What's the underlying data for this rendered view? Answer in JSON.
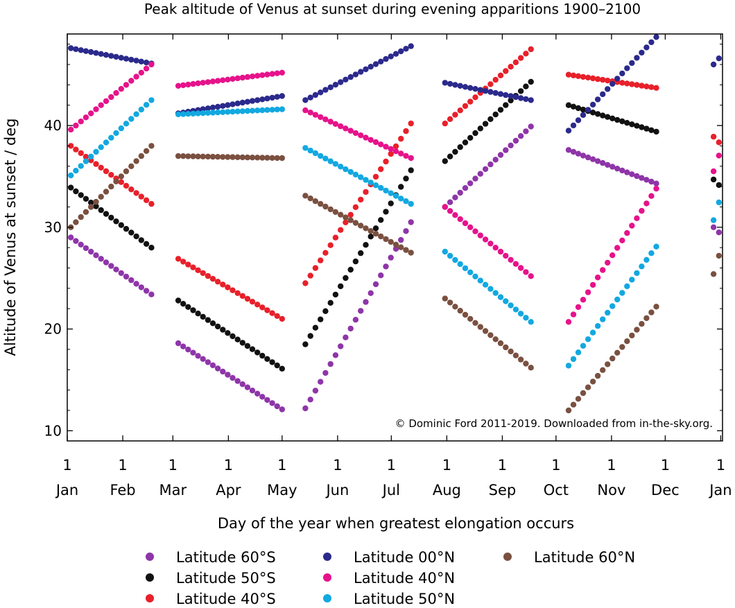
{
  "chart_data": {
    "type": "scatter",
    "title": "Peak altitude of Venus at sunset during evening apparitions 1900–2100",
    "xlabel": "Day of the year when greatest elongation occurs",
    "ylabel": "Altitude of Venus at sunset / deg",
    "xlim": [
      1,
      367
    ],
    "ylim": [
      9,
      49
    ],
    "grid": false,
    "legend_position": "bottom",
    "x_ticks": [
      {
        "day": 1,
        "num": "1",
        "label": "Jan"
      },
      {
        "day": 32,
        "num": "1",
        "label": "Feb"
      },
      {
        "day": 60,
        "num": "1",
        "label": "Mar"
      },
      {
        "day": 91,
        "num": "1",
        "label": "Apr"
      },
      {
        "day": 121,
        "num": "1",
        "label": "May"
      },
      {
        "day": 152,
        "num": "1",
        "label": "Jun"
      },
      {
        "day": 182,
        "num": "1",
        "label": "Jul"
      },
      {
        "day": 213,
        "num": "1",
        "label": "Aug"
      },
      {
        "day": 244,
        "num": "1",
        "label": "Sep"
      },
      {
        "day": 274,
        "num": "1",
        "label": "Oct"
      },
      {
        "day": 305,
        "num": "1",
        "label": "Nov"
      },
      {
        "day": 335,
        "num": "1",
        "label": "Dec"
      },
      {
        "day": 366,
        "num": "1",
        "label": "Jan"
      }
    ],
    "y_ticks": [
      10,
      20,
      30,
      40
    ],
    "annotation": "© Dominic Ford 2011-2019. Downloaded from in-the-sky.org.",
    "series": [
      {
        "name": "Latitude 60°S",
        "color": "#8e35a8",
        "segments": [
          {
            "x": [
              3,
              48
            ],
            "y": [
              29.0,
              23.4
            ]
          },
          {
            "x": [
              63,
              121
            ],
            "y": [
              18.6,
              12.1
            ]
          },
          {
            "x": [
              134,
              193
            ],
            "y": [
              12.2,
              30.5
            ]
          },
          {
            "x": [
              212,
              260
            ],
            "y": [
              32.0,
              39.9
            ]
          },
          {
            "x": [
              281,
              330
            ],
            "y": [
              37.6,
              34.3
            ]
          },
          {
            "x": [
              362,
              368
            ],
            "y": [
              30.0,
              29.0
            ]
          }
        ]
      },
      {
        "name": "Latitude 50°S",
        "color": "#111111",
        "segments": [
          {
            "x": [
              3,
              48
            ],
            "y": [
              33.9,
              28.0
            ]
          },
          {
            "x": [
              63,
              121
            ],
            "y": [
              22.8,
              16.1
            ]
          },
          {
            "x": [
              134,
              193
            ],
            "y": [
              18.5,
              35.6
            ]
          },
          {
            "x": [
              212,
              260
            ],
            "y": [
              36.5,
              44.3
            ]
          },
          {
            "x": [
              281,
              330
            ],
            "y": [
              42.0,
              39.4
            ]
          },
          {
            "x": [
              362,
              368
            ],
            "y": [
              34.7,
              33.6
            ]
          }
        ]
      },
      {
        "name": "Latitude 40°S",
        "color": "#e8202a",
        "segments": [
          {
            "x": [
              3,
              48
            ],
            "y": [
              38.0,
              32.3
            ]
          },
          {
            "x": [
              63,
              121
            ],
            "y": [
              26.9,
              21.0
            ]
          },
          {
            "x": [
              134,
              193
            ],
            "y": [
              24.5,
              40.2
            ]
          },
          {
            "x": [
              212,
              260
            ],
            "y": [
              40.2,
              47.5
            ]
          },
          {
            "x": [
              281,
              330
            ],
            "y": [
              45.0,
              43.7
            ]
          },
          {
            "x": [
              362,
              368
            ],
            "y": [
              38.9,
              37.8
            ]
          }
        ]
      },
      {
        "name": "Latitude 00°N",
        "color": "#2b2a8c",
        "segments": [
          {
            "x": [
              3,
              48
            ],
            "y": [
              47.6,
              46.1
            ]
          },
          {
            "x": [
              63,
              121
            ],
            "y": [
              41.2,
              42.9
            ]
          },
          {
            "x": [
              134,
              193
            ],
            "y": [
              42.5,
              47.8
            ]
          },
          {
            "x": [
              212,
              260
            ],
            "y": [
              44.2,
              42.5
            ]
          },
          {
            "x": [
              281,
              330
            ],
            "y": [
              39.5,
              48.7
            ]
          },
          {
            "x": [
              362,
              368
            ],
            "y": [
              46.0,
              47.2
            ]
          }
        ]
      },
      {
        "name": "Latitude 40°N",
        "color": "#e6128b",
        "segments": [
          {
            "x": [
              3,
              48
            ],
            "y": [
              39.6,
              46.0
            ]
          },
          {
            "x": [
              63,
              121
            ],
            "y": [
              43.9,
              45.2
            ]
          },
          {
            "x": [
              134,
              193
            ],
            "y": [
              41.5,
              36.8
            ]
          },
          {
            "x": [
              212,
              260
            ],
            "y": [
              32.0,
              25.2
            ]
          },
          {
            "x": [
              281,
              330
            ],
            "y": [
              20.7,
              33.8
            ]
          },
          {
            "x": [
              362,
              368
            ],
            "y": [
              35.5,
              38.6
            ]
          }
        ]
      },
      {
        "name": "Latitude 50°N",
        "color": "#12a8e0",
        "segments": [
          {
            "x": [
              3,
              48
            ],
            "y": [
              35.1,
              42.5
            ]
          },
          {
            "x": [
              63,
              121
            ],
            "y": [
              41.1,
              41.6
            ]
          },
          {
            "x": [
              134,
              193
            ],
            "y": [
              37.8,
              32.3
            ]
          },
          {
            "x": [
              212,
              260
            ],
            "y": [
              27.6,
              20.7
            ]
          },
          {
            "x": [
              281,
              330
            ],
            "y": [
              16.4,
              28.1
            ]
          },
          {
            "x": [
              362,
              368
            ],
            "y": [
              30.7,
              34.2
            ]
          }
        ]
      },
      {
        "name": "Latitude 60°N",
        "color": "#7a5040",
        "segments": [
          {
            "x": [
              3,
              48
            ],
            "y": [
              30.0,
              38.0
            ]
          },
          {
            "x": [
              63,
              121
            ],
            "y": [
              37.0,
              36.8
            ]
          },
          {
            "x": [
              134,
              193
            ],
            "y": [
              33.1,
              27.5
            ]
          },
          {
            "x": [
              212,
              260
            ],
            "y": [
              23.0,
              16.2
            ]
          },
          {
            "x": [
              281,
              330
            ],
            "y": [
              12.0,
              22.2
            ]
          },
          {
            "x": [
              362,
              368
            ],
            "y": [
              25.4,
              29.0
            ]
          }
        ]
      }
    ]
  }
}
